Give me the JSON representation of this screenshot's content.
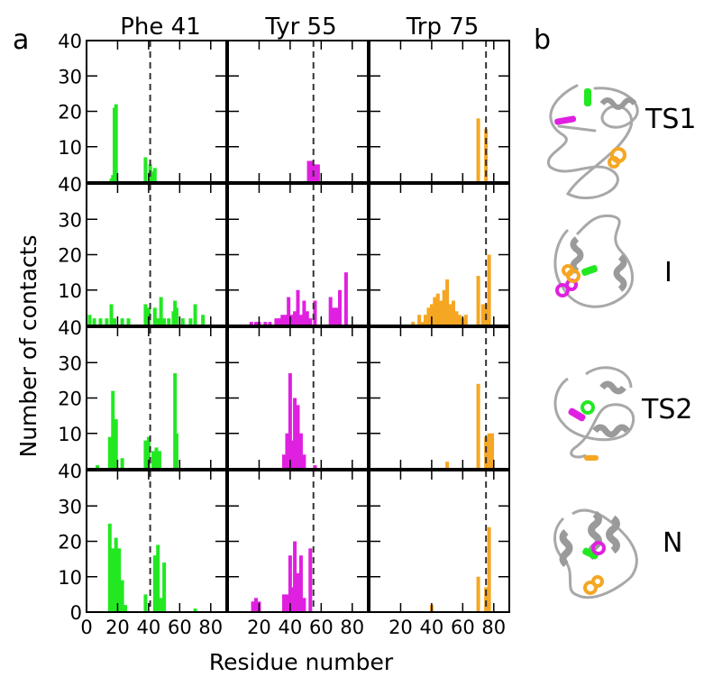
{
  "panel_labels": {
    "a": "a",
    "b": "b"
  },
  "columns": [
    "Phe 41",
    "Tyr 55",
    "Trp 75"
  ],
  "rows": [
    "TS1",
    "I",
    "TS2",
    "N"
  ],
  "ylabel": "Number of contacts",
  "xlabel": "Residue number",
  "colors": {
    "Phe 41": "#22e822",
    "Tyr 55": "#e020e0",
    "Trp 75": "#f5a623",
    "protein": "#a8a8a8",
    "axis": "#000000"
  },
  "chart_data": {
    "type": "bar",
    "layout": "grid 4 rows x 3 columns of histograms",
    "xlim": [
      0,
      90
    ],
    "ylim": [
      0,
      40
    ],
    "ytick_labels": [
      "0",
      "10",
      "20",
      "30",
      "40"
    ],
    "xtick_labels": [
      [
        "0",
        "20",
        "40",
        "60",
        "80"
      ],
      [
        "20",
        "40",
        "60",
        "80"
      ],
      [
        "20",
        "40",
        "60",
        "80"
      ]
    ],
    "reference_residue": {
      "Phe 41": 41,
      "Tyr 55": 55,
      "Trp 75": 75
    },
    "panels": [
      {
        "row": "TS1",
        "column": "Phe 41",
        "bars": [
          [
            16,
            1
          ],
          [
            17,
            2
          ],
          [
            18,
            21
          ],
          [
            19,
            22
          ],
          [
            38,
            7
          ],
          [
            41,
            5
          ],
          [
            43,
            3
          ],
          [
            44,
            4
          ]
        ]
      },
      {
        "row": "TS1",
        "column": "Tyr 55",
        "bars": [
          [
            52,
            6
          ],
          [
            54,
            6
          ],
          [
            56,
            5
          ],
          [
            58,
            5
          ]
        ]
      },
      {
        "row": "TS1",
        "column": "Trp 75",
        "bars": [
          [
            70,
            18
          ],
          [
            75,
            15
          ]
        ]
      },
      {
        "row": "I",
        "column": "Phe 41",
        "bars": [
          [
            2,
            3
          ],
          [
            5,
            2
          ],
          [
            9,
            2
          ],
          [
            13,
            2
          ],
          [
            16,
            6
          ],
          [
            18,
            2
          ],
          [
            23,
            2
          ],
          [
            27,
            2
          ],
          [
            38,
            6
          ],
          [
            40,
            5
          ],
          [
            44,
            5
          ],
          [
            46,
            2
          ],
          [
            48,
            8
          ],
          [
            50,
            2
          ],
          [
            53,
            2
          ],
          [
            56,
            4
          ],
          [
            57,
            7
          ],
          [
            58,
            5
          ],
          [
            62,
            2
          ],
          [
            67,
            2
          ],
          [
            70,
            6
          ],
          [
            75,
            3
          ]
        ]
      },
      {
        "row": "I",
        "column": "Tyr 55",
        "bars": [
          [
            15,
            1
          ],
          [
            18,
            1
          ],
          [
            20,
            1
          ],
          [
            24,
            1
          ],
          [
            27,
            1
          ],
          [
            31,
            2
          ],
          [
            33,
            2
          ],
          [
            35,
            3
          ],
          [
            37,
            3
          ],
          [
            39,
            8
          ],
          [
            41,
            3
          ],
          [
            43,
            4
          ],
          [
            45,
            10
          ],
          [
            47,
            3
          ],
          [
            49,
            7
          ],
          [
            51,
            4
          ],
          [
            53,
            2
          ],
          [
            56,
            7
          ],
          [
            66,
            8
          ],
          [
            68,
            5
          ],
          [
            70,
            5
          ],
          [
            72,
            10
          ],
          [
            76,
            15
          ]
        ]
      },
      {
        "row": "I",
        "column": "Trp 75",
        "bars": [
          [
            28,
            1
          ],
          [
            32,
            3
          ],
          [
            34,
            1
          ],
          [
            36,
            3
          ],
          [
            38,
            5
          ],
          [
            40,
            6
          ],
          [
            42,
            8
          ],
          [
            44,
            9
          ],
          [
            46,
            7
          ],
          [
            48,
            10
          ],
          [
            50,
            13
          ],
          [
            52,
            6
          ],
          [
            54,
            7
          ],
          [
            56,
            4
          ],
          [
            58,
            3
          ],
          [
            60,
            2
          ],
          [
            62,
            3
          ],
          [
            70,
            14
          ],
          [
            73,
            6
          ],
          [
            75,
            6
          ],
          [
            77,
            20
          ]
        ]
      },
      {
        "row": "TS2",
        "column": "Phe 41",
        "bars": [
          [
            7,
            1
          ],
          [
            15,
            9
          ],
          [
            17,
            22
          ],
          [
            19,
            14
          ],
          [
            23,
            3
          ],
          [
            38,
            8
          ],
          [
            40,
            9
          ],
          [
            43,
            5
          ],
          [
            45,
            6
          ],
          [
            47,
            5
          ],
          [
            57,
            27
          ],
          [
            58,
            10
          ]
        ]
      },
      {
        "row": "TS2",
        "column": "Tyr 55",
        "bars": [
          [
            36,
            4
          ],
          [
            38,
            10
          ],
          [
            40,
            27
          ],
          [
            41,
            8
          ],
          [
            43,
            20
          ],
          [
            45,
            18
          ],
          [
            47,
            10
          ],
          [
            49,
            4
          ],
          [
            56,
            1
          ]
        ]
      },
      {
        "row": "TS2",
        "column": "Trp 75",
        "bars": [
          [
            50,
            2
          ],
          [
            70,
            24
          ],
          [
            75,
            9
          ],
          [
            77,
            10
          ],
          [
            79,
            10
          ]
        ]
      },
      {
        "row": "N",
        "column": "Phe 41",
        "bars": [
          [
            15,
            25
          ],
          [
            17,
            18
          ],
          [
            19,
            21
          ],
          [
            21,
            18
          ],
          [
            23,
            9
          ],
          [
            25,
            2
          ],
          [
            38,
            5
          ],
          [
            44,
            16
          ],
          [
            46,
            19
          ],
          [
            48,
            4
          ],
          [
            50,
            14
          ],
          [
            70,
            1
          ]
        ]
      },
      {
        "row": "N",
        "column": "Tyr 55",
        "bars": [
          [
            16,
            3
          ],
          [
            18,
            4
          ],
          [
            20,
            3
          ],
          [
            36,
            5
          ],
          [
            38,
            5
          ],
          [
            40,
            16
          ],
          [
            41,
            7
          ],
          [
            43,
            20
          ],
          [
            45,
            11
          ],
          [
            47,
            16
          ],
          [
            49,
            4
          ],
          [
            53,
            18
          ]
        ]
      },
      {
        "row": "N",
        "column": "Trp 75",
        "bars": [
          [
            40,
            2
          ],
          [
            70,
            10
          ],
          [
            75,
            7
          ],
          [
            77,
            24
          ]
        ]
      }
    ]
  },
  "structures": [
    "TS1",
    "I",
    "TS2",
    "N"
  ]
}
